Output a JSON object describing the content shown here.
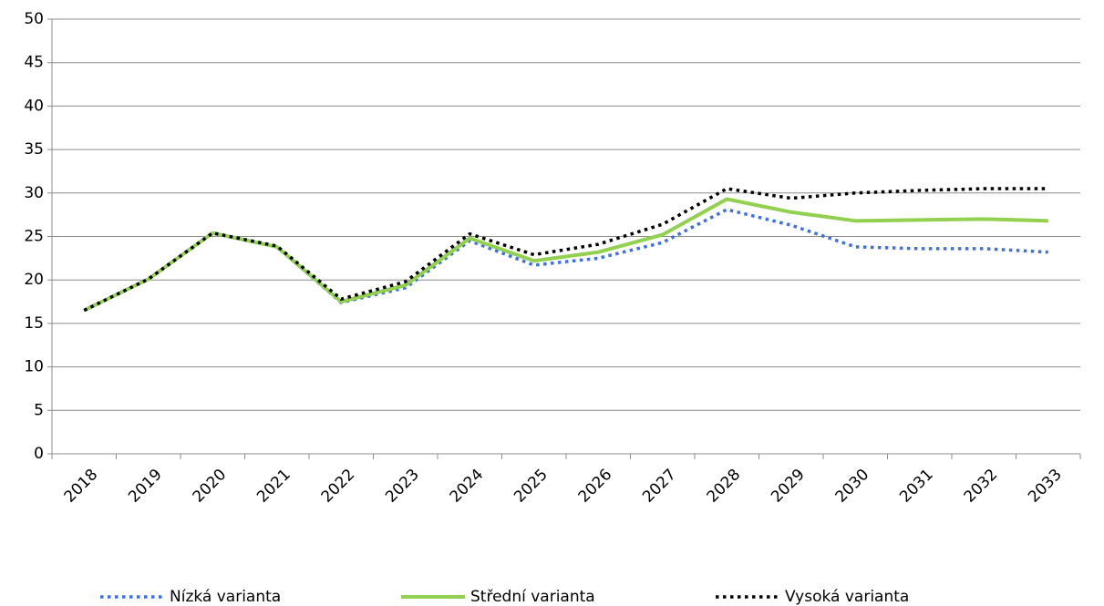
{
  "chart_data": {
    "type": "line",
    "categories": [
      "2018",
      "2019",
      "2020",
      "2021",
      "2022",
      "2023",
      "2024",
      "2025",
      "2026",
      "2027",
      "2028",
      "2029",
      "2030",
      "2031",
      "2032",
      "2033"
    ],
    "series": [
      {
        "name": "Nízká varianta",
        "color": "#3d6fe6",
        "style": "dotted",
        "values": [
          16.5,
          20.1,
          25.4,
          23.8,
          17.4,
          19.1,
          24.5,
          21.7,
          22.5,
          24.3,
          28.1,
          26.3,
          23.8,
          23.6,
          23.6,
          23.2
        ]
      },
      {
        "name": "Střední varianta",
        "color": "#92d050",
        "style": "solid",
        "values": [
          16.5,
          20.1,
          25.4,
          23.8,
          17.5,
          19.4,
          24.8,
          22.2,
          23.2,
          25.2,
          29.3,
          27.8,
          26.8,
          26.9,
          27.0,
          26.8
        ]
      },
      {
        "name": "Vysoká varianta",
        "color": "#000000",
        "style": "dotted",
        "values": [
          16.5,
          20.1,
          25.4,
          23.9,
          17.8,
          19.8,
          25.3,
          22.9,
          24.1,
          26.4,
          30.5,
          29.4,
          30.0,
          30.3,
          30.5,
          30.5
        ]
      }
    ],
    "ylim": [
      0,
      50
    ],
    "yticks": [
      0,
      5,
      10,
      15,
      20,
      25,
      30,
      35,
      40,
      45,
      50
    ],
    "grid": true,
    "legend": "bottom"
  }
}
